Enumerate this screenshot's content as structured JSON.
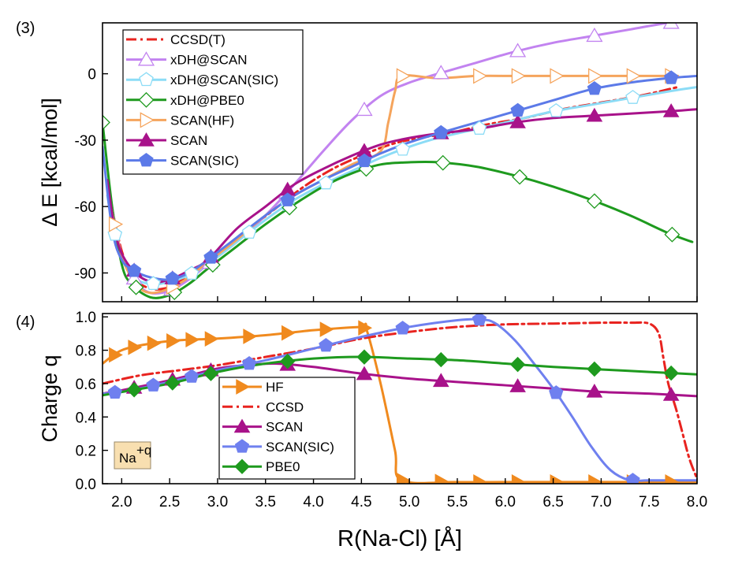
{
  "x_axis": {
    "label": "R(Na-Cl) [Å]",
    "min": 1.8,
    "max": 8.0,
    "ticks": [
      2.0,
      2.5,
      3.0,
      3.5,
      4.0,
      4.5,
      5.0,
      5.5,
      6.0,
      6.5,
      7.0,
      7.5,
      8.0
    ],
    "tick_labels": [
      "2.0",
      "2.5",
      "3.0",
      "3.5",
      "4.0",
      "4.5",
      "5.0",
      "5.5",
      "6.0",
      "6.5",
      "7.0",
      "7.5",
      "8.0"
    ]
  },
  "chart_data": [
    {
      "type": "line",
      "panel": "(3)",
      "title": "",
      "xlabel": "R(Na-Cl) [Å]",
      "ylabel": "Δ E [kcal/mol]",
      "xlim": [
        1.8,
        8.0
      ],
      "ylim": [
        -103,
        23
      ],
      "yticks": [
        -90,
        -60,
        -30,
        0
      ],
      "ytick_labels": [
        "-90",
        "-60",
        "-30",
        "0"
      ],
      "legend_position": "top-left",
      "series": [
        {
          "name": "CCSD(T)",
          "color": "#e8231f",
          "style": "dashdot",
          "marker": "none",
          "x": [
            1.85,
            2.0,
            2.15,
            2.3,
            2.45,
            2.6,
            2.8,
            3.0,
            3.3,
            3.6,
            3.9,
            4.2,
            4.5,
            4.8,
            5.1,
            5.4,
            5.8,
            6.2,
            6.6,
            7.0,
            7.4,
            7.8
          ],
          "y": [
            -50,
            -80,
            -93,
            -97,
            -97,
            -94,
            -88,
            -81,
            -71,
            -61,
            -51,
            -43,
            -37,
            -32,
            -29,
            -27,
            -23,
            -20,
            -16,
            -13,
            -10,
            -6
          ],
          "marker_x": []
        },
        {
          "name": "xDH@SCAN",
          "color": "#c283f0",
          "style": "solid",
          "marker": "triangle-open",
          "x": [
            1.85,
            2.0,
            2.15,
            2.3,
            2.5,
            2.7,
            2.9,
            3.2,
            3.5,
            3.8,
            4.1,
            4.4,
            4.7,
            5.0,
            5.3,
            5.7,
            6.1,
            6.5,
            6.9,
            7.3,
            7.7,
            8.0
          ],
          "y": [
            -48,
            -82,
            -94,
            -99,
            -98,
            -93,
            -86,
            -76,
            -64,
            -50,
            -35,
            -21,
            -10,
            -4,
            0,
            5,
            10,
            14,
            17,
            20,
            23,
            24
          ],
          "marker_x": [
            2.13,
            2.52,
            2.92,
            3.72,
            4.53,
            5.33,
            6.13,
            6.93,
            7.73
          ]
        },
        {
          "name": "xDH@SCAN(SIC)",
          "color": "#8cdcf6",
          "style": "solid",
          "marker": "pentagon-open",
          "x": [
            1.85,
            1.95,
            2.1,
            2.3,
            2.5,
            2.7,
            2.9,
            3.2,
            3.5,
            3.8,
            4.1,
            4.4,
            4.7,
            5.0,
            5.3,
            5.7,
            6.1,
            6.5,
            6.9,
            7.3,
            7.7,
            8.0
          ],
          "y": [
            -55,
            -77,
            -91,
            -95,
            -94,
            -91,
            -86,
            -76,
            -66,
            -57,
            -50,
            -44,
            -38,
            -33,
            -29,
            -25,
            -21,
            -17,
            -14,
            -11,
            -8,
            -6
          ],
          "marker_x": [
            1.93,
            2.33,
            2.73,
            3.33,
            3.73,
            4.13,
            4.93,
            5.73,
            6.53,
            7.33
          ]
        },
        {
          "name": "xDH@PBE0",
          "color": "#1e9a1e",
          "style": "solid",
          "marker": "diamond-open",
          "x": [
            1.8,
            1.9,
            2.0,
            2.1,
            2.3,
            2.5,
            2.7,
            2.9,
            3.2,
            3.5,
            3.8,
            4.1,
            4.4,
            4.7,
            5.0,
            5.3,
            5.7,
            6.1,
            6.5,
            6.9,
            7.3,
            7.7,
            7.95
          ],
          "y": [
            -22,
            -60,
            -86,
            -95,
            -101,
            -100,
            -95,
            -88,
            -78,
            -68,
            -59,
            -51,
            -45,
            -41,
            -40,
            -40,
            -42,
            -46,
            -51,
            -57,
            -64,
            -72,
            -76
          ],
          "marker_x": [
            1.8,
            2.15,
            2.55,
            2.95,
            3.75,
            4.55,
            5.35,
            6.15,
            6.93,
            7.74
          ]
        },
        {
          "name": "SCAN(HF)",
          "color": "#f5a45c",
          "style": "solid",
          "marker": "triangle-right-open",
          "x": [
            1.85,
            2.0,
            2.15,
            2.3,
            2.5,
            2.7,
            2.9,
            3.2,
            3.5,
            3.8,
            4.1,
            4.4,
            4.7,
            4.78,
            4.85,
            4.92,
            5.3,
            5.7,
            6.1,
            6.5,
            6.9,
            7.3,
            7.8
          ],
          "y": [
            -52,
            -82,
            -95,
            -99,
            -97,
            -92,
            -85,
            -75,
            -64,
            -55,
            -48,
            -41,
            -35,
            -22,
            -8,
            -1,
            -2,
            -1,
            -1,
            -1,
            -1,
            -1,
            -1
          ],
          "marker_x": [
            1.93,
            2.53,
            4.93,
            5.73,
            6.13,
            6.53,
            6.93,
            7.33,
            7.73
          ]
        },
        {
          "name": "SCAN",
          "color": "#a8128a",
          "style": "solid",
          "marker": "triangle-filled",
          "x": [
            1.85,
            1.95,
            2.1,
            2.3,
            2.5,
            2.7,
            2.9,
            3.2,
            3.5,
            3.8,
            4.1,
            4.4,
            4.7,
            5.0,
            5.3,
            5.7,
            6.1,
            6.5,
            6.9,
            7.3,
            7.7,
            8.0
          ],
          "y": [
            -48,
            -75,
            -88,
            -94,
            -93,
            -89,
            -84,
            -70,
            -60,
            -50,
            -43,
            -37,
            -32,
            -29,
            -27,
            -25,
            -22,
            -20,
            -19,
            -18,
            -17,
            -16
          ],
          "marker_x": [
            2.13,
            2.53,
            2.93,
            3.73,
            4.53,
            5.33,
            6.13,
            6.93,
            7.73
          ]
        },
        {
          "name": "SCAN(SIC)",
          "color": "#5c7ae8",
          "style": "solid",
          "marker": "pentagon-filled",
          "x": [
            1.8,
            1.9,
            2.0,
            2.13,
            2.3,
            2.5,
            2.7,
            2.9,
            3.2,
            3.5,
            3.8,
            4.1,
            4.4,
            4.7,
            5.0,
            5.3,
            5.7,
            6.1,
            6.5,
            6.9,
            7.3,
            7.7,
            8.0
          ],
          "y": [
            -33,
            -70,
            -84,
            -89,
            -92,
            -93,
            -90,
            -84,
            -74,
            -64,
            -55,
            -48,
            -42,
            -36,
            -31,
            -27,
            -22,
            -17,
            -12,
            -7,
            -4,
            -2,
            -1
          ],
          "marker_x": [
            2.13,
            2.53,
            2.93,
            3.73,
            4.53,
            5.33,
            6.13,
            6.93,
            7.73
          ]
        }
      ]
    },
    {
      "type": "line",
      "panel": "(4)",
      "title": "",
      "xlabel": "R(Na-Cl) [Å]",
      "ylabel": "Charge q",
      "xlim": [
        1.8,
        8.0
      ],
      "ylim": [
        0,
        1.02
      ],
      "yticks": [
        0,
        0.2,
        0.4,
        0.6,
        0.8,
        1.0
      ],
      "ytick_labels": [
        "0.0",
        "0.2",
        "0.4",
        "0.6",
        "0.8",
        "1.0"
      ],
      "legend_position": "bottom-center",
      "annotation": "Na",
      "annotation_sup": "+q",
      "series": [
        {
          "name": "HF",
          "color": "#f08a1e",
          "style": "solid",
          "marker": "triangle-right-filled",
          "x": [
            1.8,
            2.0,
            2.3,
            2.6,
            3.0,
            3.5,
            4.0,
            4.5,
            4.55,
            4.7,
            4.85,
            4.92,
            5.5,
            6.0,
            6.5,
            7.0,
            7.5,
            8.0
          ],
          "y": [
            0.72,
            0.8,
            0.84,
            0.86,
            0.87,
            0.89,
            0.92,
            0.94,
            0.93,
            0.6,
            0.2,
            0.02,
            0.01,
            0.01,
            0.01,
            0.01,
            0.01,
            0.01
          ],
          "marker_x": [
            1.93,
            2.13,
            2.33,
            2.53,
            2.73,
            2.93,
            3.33,
            3.73,
            4.13,
            4.53,
            4.93,
            5.33,
            5.73,
            6.13,
            6.53,
            6.93,
            7.33,
            7.73
          ]
        },
        {
          "name": "CCSD",
          "color": "#e8231f",
          "style": "dashdot",
          "marker": "none",
          "x": [
            1.8,
            2.2,
            2.6,
            3.0,
            3.5,
            4.0,
            4.5,
            5.0,
            5.5,
            6.0,
            6.5,
            7.0,
            7.3,
            7.5,
            7.6,
            7.65,
            7.7,
            7.78,
            7.85,
            7.92,
            8.0
          ],
          "y": [
            0.6,
            0.65,
            0.68,
            0.71,
            0.76,
            0.81,
            0.87,
            0.91,
            0.94,
            0.955,
            0.96,
            0.965,
            0.965,
            0.96,
            0.9,
            0.75,
            0.6,
            0.45,
            0.3,
            0.15,
            0.03
          ],
          "marker_x": []
        },
        {
          "name": "SCAN",
          "color": "#a8128a",
          "style": "solid",
          "marker": "triangle-filled",
          "x": [
            1.8,
            2.0,
            2.5,
            3.0,
            3.3,
            3.6,
            4.0,
            4.5,
            5.0,
            5.5,
            6.0,
            6.5,
            7.0,
            7.5,
            8.0
          ],
          "y": [
            0.54,
            0.56,
            0.62,
            0.69,
            0.71,
            0.72,
            0.7,
            0.66,
            0.63,
            0.61,
            0.59,
            0.57,
            0.55,
            0.54,
            0.525
          ],
          "marker_x": [
            2.13,
            2.53,
            2.93,
            3.73,
            4.53,
            5.33,
            6.13,
            6.93,
            7.73
          ]
        },
        {
          "name": "SCAN(SIC)",
          "color": "#6f80ef",
          "style": "solid",
          "marker": "pentagon-filled",
          "x": [
            1.8,
            2.0,
            2.5,
            3.0,
            3.5,
            4.0,
            4.5,
            5.0,
            5.5,
            5.75,
            5.9,
            6.1,
            6.3,
            6.5,
            6.7,
            6.9,
            7.1,
            7.3,
            7.5,
            8.0
          ],
          "y": [
            0.54,
            0.55,
            0.61,
            0.68,
            0.74,
            0.81,
            0.88,
            0.94,
            0.98,
            0.985,
            0.96,
            0.86,
            0.72,
            0.57,
            0.4,
            0.22,
            0.08,
            0.02,
            0.02,
            0.02
          ],
          "marker_x": [
            1.93,
            2.33,
            2.73,
            3.33,
            4.13,
            4.93,
            5.73,
            6.53,
            7.33
          ]
        },
        {
          "name": "PBE0",
          "color": "#1e9a1e",
          "style": "solid",
          "marker": "diamond-filled",
          "x": [
            1.8,
            2.0,
            2.5,
            3.0,
            3.5,
            4.0,
            4.5,
            5.0,
            5.5,
            6.0,
            6.5,
            7.0,
            7.5,
            8.0
          ],
          "y": [
            0.53,
            0.55,
            0.6,
            0.67,
            0.72,
            0.75,
            0.76,
            0.75,
            0.74,
            0.72,
            0.7,
            0.685,
            0.67,
            0.655
          ],
          "marker_x": [
            2.13,
            2.53,
            2.93,
            3.73,
            4.53,
            5.33,
            6.13,
            6.93,
            7.73
          ]
        }
      ]
    }
  ]
}
